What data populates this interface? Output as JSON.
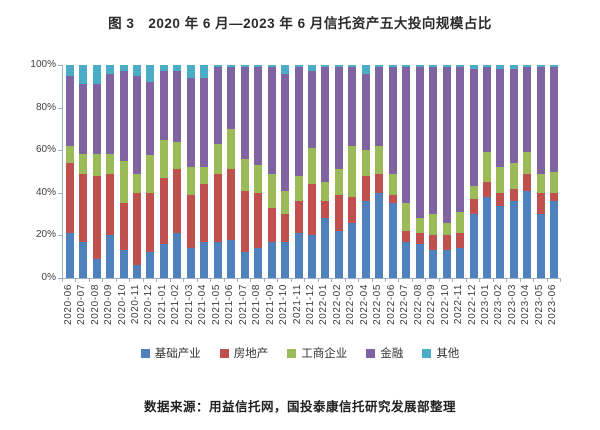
{
  "title": "图 3　2020 年 6 月—2023 年 6 月信托资产五大投向规模占比",
  "source_note": "数据来源：用益信托网，国投泰康信托研究发展部整理",
  "axis_color": "#9fb0c6",
  "chart_data": {
    "type": "bar",
    "stacked": true,
    "percent": true,
    "title": "图 3　2020 年 6 月—2023 年 6 月信托资产五大投向规模占比",
    "xlabel": "",
    "ylabel": "",
    "ylim": [
      0,
      100
    ],
    "yticks": [
      "0%",
      "20%",
      "40%",
      "60%",
      "80%",
      "100%"
    ],
    "grid": false,
    "legend_position": "bottom",
    "categories": [
      "2020-06",
      "2020-07",
      "2020-08",
      "2020-09",
      "2020-10",
      "2020-11",
      "2020-12",
      "2021-01",
      "2021-02",
      "2021-03",
      "2021-04",
      "2021-05",
      "2021-06",
      "2021-07",
      "2021-08",
      "2021-09",
      "2021-10",
      "2021-11",
      "2021-12",
      "2022-01",
      "2022-02",
      "2022-03",
      "2022-04",
      "2022-05",
      "2022-06",
      "2022-07",
      "2022-08",
      "2022-09",
      "2022-10",
      "2022-11",
      "2022-12",
      "2023-01",
      "2023-02",
      "2023-03",
      "2023-04",
      "2023-05",
      "2023-06"
    ],
    "series": [
      {
        "key": "infrastructure",
        "name": "基础产业",
        "color": "#4f81bd",
        "values": [
          21,
          17,
          9,
          20,
          13,
          6,
          12,
          16,
          21,
          14,
          17,
          17,
          18,
          12,
          14,
          17,
          17,
          21,
          20,
          28,
          22,
          26,
          36,
          40,
          35,
          17,
          16,
          13,
          13,
          14,
          30,
          38,
          34,
          36,
          41,
          30,
          36
        ]
      },
      {
        "key": "real-estate",
        "name": "房地产",
        "color": "#c0504d",
        "values": [
          33,
          32,
          39,
          29,
          22,
          34,
          28,
          31,
          30,
          25,
          27,
          32,
          33,
          29,
          26,
          16,
          13,
          15,
          24,
          8,
          17,
          12,
          12,
          9,
          4,
          5,
          5,
          7,
          7,
          7,
          7,
          7,
          6,
          6,
          8,
          10,
          4
        ]
      },
      {
        "key": "industrial-commercial",
        "name": "工商企业",
        "color": "#9bbb59",
        "values": [
          8,
          9,
          10,
          9,
          20,
          9,
          18,
          18,
          13,
          13,
          8,
          14,
          19,
          15,
          13,
          16,
          11,
          12,
          17,
          9,
          12,
          24,
          12,
          13,
          10,
          13,
          7,
          10,
          6,
          10,
          6,
          14,
          12,
          12,
          10,
          9,
          10
        ]
      },
      {
        "key": "finance",
        "name": "金融",
        "color": "#8064a2",
        "values": [
          33,
          33,
          33,
          38,
          42,
          46,
          34,
          32,
          33,
          42,
          42,
          36,
          29,
          43,
          46,
          50,
          55,
          51,
          36,
          54,
          48,
          37,
          36,
          37,
          50,
          64,
          71,
          69,
          73,
          68,
          55,
          40,
          46,
          44,
          40,
          50,
          49
        ]
      },
      {
        "key": "other",
        "name": "其他",
        "color": "#4bacc6",
        "values": [
          5,
          9,
          9,
          4,
          3,
          5,
          8,
          3,
          3,
          6,
          6,
          1,
          1,
          1,
          1,
          1,
          4,
          1,
          3,
          1,
          1,
          1,
          4,
          1,
          1,
          1,
          1,
          1,
          1,
          1,
          2,
          1,
          2,
          2,
          1,
          1,
          1
        ]
      }
    ]
  }
}
